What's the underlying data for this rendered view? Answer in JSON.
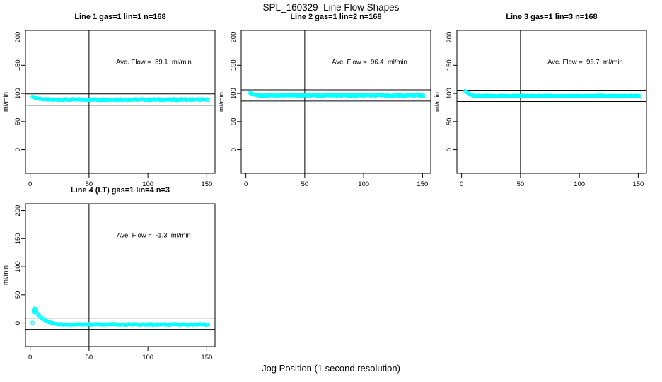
{
  "page": {
    "title": "SPL_160329  Line Flow Shapes",
    "xlabel": "Jog Position (1 second resolution)"
  },
  "colors": {
    "points": "#00ffff",
    "axis": "#000000",
    "background": "#ffffff",
    "text": "#000000"
  },
  "chart_data": [
    {
      "type": "scatter",
      "title": "Line 1 gas=1 lin=1 n=168",
      "annotation": "Ave. Flow =  89.1  ml/min",
      "ave_flow_ml_min": 89.1,
      "n": 168,
      "ylabel": "ml/min",
      "x_ticks": [
        0,
        50,
        100,
        150
      ],
      "y_ticks": [
        0,
        50,
        100,
        150,
        200
      ],
      "xlim": [
        -4,
        157
      ],
      "ylim": [
        -42,
        212
      ],
      "vline_x": 50,
      "hlines": [
        99.1,
        79.1
      ],
      "annotation_pos": [
        105,
        152
      ],
      "transient_points": [
        [
          2,
          94
        ],
        [
          3,
          93.2
        ],
        [
          4,
          92.5
        ],
        [
          5,
          91.9
        ],
        [
          6,
          91.3
        ],
        [
          7,
          90.8
        ],
        [
          8,
          90.4
        ],
        [
          9,
          90.1
        ],
        [
          10,
          89.8
        ],
        [
          11,
          89.6
        ],
        [
          12,
          89.4
        ]
      ],
      "steady": {
        "x_from": 13,
        "x_to": 151,
        "step": 1,
        "y_mean": 89.1,
        "y_jitter": 1.0
      }
    },
    {
      "type": "scatter",
      "title": "Line 2 gas=1 lin=2 n=168",
      "annotation": "Ave. Flow =  96.4  ml/min",
      "ave_flow_ml_min": 96.4,
      "n": 168,
      "ylabel": "ml/min",
      "x_ticks": [
        0,
        50,
        100,
        150
      ],
      "y_ticks": [
        0,
        50,
        100,
        150,
        200
      ],
      "xlim": [
        -4,
        157
      ],
      "ylim": [
        -42,
        212
      ],
      "vline_x": 50,
      "hlines": [
        106.4,
        86.4
      ],
      "annotation_pos": [
        105,
        152
      ],
      "transient_points": [
        [
          3,
          101.5
        ],
        [
          4,
          100.6
        ],
        [
          5,
          99.7
        ],
        [
          6,
          98.9
        ],
        [
          7,
          98.2
        ],
        [
          8,
          97.6
        ],
        [
          9,
          97.1
        ],
        [
          10,
          96.8
        ]
      ],
      "steady": {
        "x_from": 11,
        "x_to": 151,
        "step": 1,
        "y_mean": 96.5,
        "y_jitter": 1.0
      }
    },
    {
      "type": "scatter",
      "title": "Line 3 gas=1 lin=3 n=168",
      "annotation": "Ave. Flow =  95.7  ml/min",
      "ave_flow_ml_min": 95.7,
      "n": 168,
      "ylabel": "ml/min",
      "x_ticks": [
        0,
        50,
        100,
        150
      ],
      "y_ticks": [
        0,
        50,
        100,
        150,
        200
      ],
      "xlim": [
        -4,
        157
      ],
      "ylim": [
        -42,
        212
      ],
      "vline_x": 50,
      "hlines": [
        105.7,
        85.7
      ],
      "annotation_pos": [
        105,
        152
      ],
      "transient_points": [
        [
          3,
          104
        ],
        [
          4,
          103
        ],
        [
          5,
          101.6
        ],
        [
          6,
          100.2
        ],
        [
          7,
          98.9
        ],
        [
          8,
          97.8
        ],
        [
          9,
          96.9
        ],
        [
          10,
          96.2
        ],
        [
          11,
          95.8
        ]
      ],
      "steady": {
        "x_from": 12,
        "x_to": 151,
        "step": 1,
        "y_mean": 95.6,
        "y_jitter": 0.7
      }
    },
    {
      "type": "scatter",
      "title": "Line 4 (LT) gas=1 lin=4 n=3",
      "annotation": "Ave. Flow =  -1.3  ml/min",
      "ave_flow_ml_min": -1.3,
      "n": 3,
      "ylabel": "ml/min",
      "x_ticks": [
        0,
        50,
        100,
        150
      ],
      "y_ticks": [
        0,
        50,
        100,
        150,
        200
      ],
      "xlim": [
        -4,
        157
      ],
      "ylim": [
        -42,
        212
      ],
      "vline_x": 50,
      "hlines": [
        8.7,
        -11.3
      ],
      "annotation_pos": [
        105,
        152
      ],
      "transient_points": [
        [
          2,
          0.5
        ],
        [
          3,
          19
        ],
        [
          3,
          23
        ],
        [
          4,
          26
        ],
        [
          4,
          22
        ],
        [
          5,
          20
        ],
        [
          5,
          24
        ],
        [
          6,
          17.5
        ],
        [
          7,
          15
        ],
        [
          8,
          12.5
        ],
        [
          9,
          10.5
        ],
        [
          10,
          8.5
        ],
        [
          11,
          7
        ],
        [
          12,
          5.5
        ],
        [
          13,
          4.5
        ],
        [
          14,
          3.5
        ],
        [
          15,
          2.5
        ],
        [
          16,
          1.8
        ],
        [
          17,
          1
        ],
        [
          18,
          0.3
        ],
        [
          19,
          -0.3
        ],
        [
          20,
          -0.8
        ],
        [
          21,
          -1.2
        ],
        [
          22,
          -1.6
        ],
        [
          23,
          -1.9
        ],
        [
          24,
          -2.2
        ]
      ],
      "steady": {
        "x_from": 25,
        "x_to": 151,
        "step": 1,
        "y_mean": -2.5,
        "y_jitter": 0.7
      }
    }
  ],
  "layout_note": "2x2 grid, bottom-right slot empty"
}
